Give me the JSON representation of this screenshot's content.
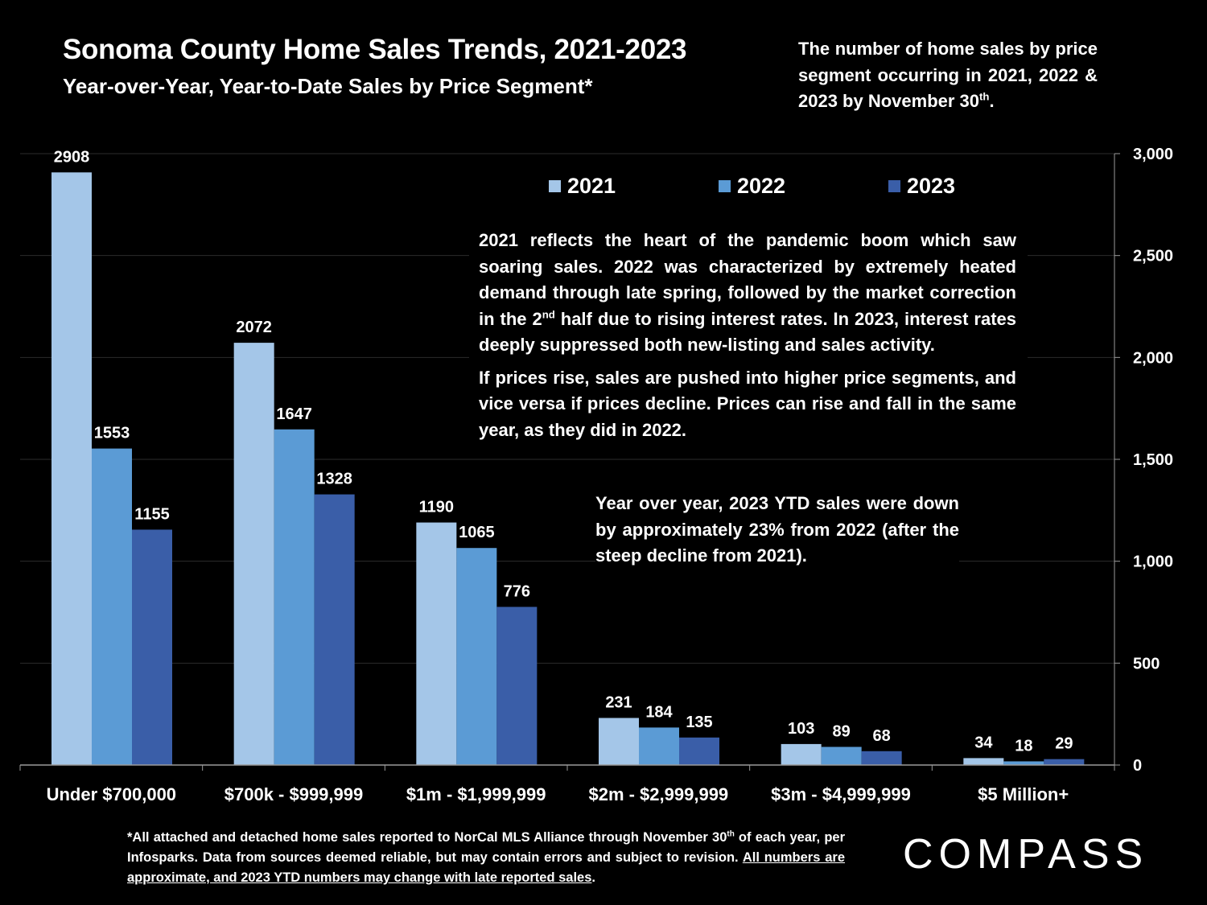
{
  "header": {
    "title": "Sonoma County Home Sales Trends, 2021-2023",
    "subtitle": "Year-over-Year, Year-to-Date Sales by Price Segment*",
    "note_pre": "The number of home sales by price segment occurring in 2021, 2022 & 2023 by November 30",
    "note_sup": "th",
    "note_post": "."
  },
  "annotations": {
    "a1_p1_pre": "2021 reflects the heart of the pandemic boom which saw soaring sales. 2022 was characterized by extremely heated demand through late spring, followed by the market correction in the 2",
    "a1_p1_sup": "nd",
    "a1_p1_post": " half due to rising interest rates. In 2023, interest rates deeply suppressed both new-listing and sales activity.",
    "a1_p2": "If prices rise, sales are pushed into higher price segments, and vice versa if prices decline. Prices can rise and fall in the same year, as they did in 2022.",
    "a2": "Year over year, 2023 YTD sales were down by approximately 23% from 2022 (after the steep decline from 2021)."
  },
  "footnote": {
    "pre": "*All attached and detached home sales reported to NorCal MLS Alliance through November 30",
    "sup": "th",
    "mid": " of each year, per Infosparks. Data from sources deemed reliable, but may contain errors and subject to revision. ",
    "underlined": "All numbers are approximate, and 2023 YTD numbers may change with late reported sales",
    "post": "."
  },
  "logo": {
    "text": "COMPASS"
  },
  "chart_data": {
    "type": "bar",
    "title": "Sonoma County Home Sales Trends, 2021-2023",
    "subtitle": "Year-over-Year, Year-to-Date Sales by Price Segment*",
    "categories": [
      "Under $700,000",
      "$700k - $999,999",
      "$1m - $1,999,999",
      "$2m - $2,999,999",
      "$3m - $4,999,999",
      "$5 Million+"
    ],
    "series": [
      {
        "name": "2021",
        "color": "#a4c6e8",
        "values": [
          2908,
          2072,
          1190,
          231,
          103,
          34
        ]
      },
      {
        "name": "2022",
        "color": "#5b9bd5",
        "values": [
          1553,
          1647,
          1065,
          184,
          89,
          18
        ]
      },
      {
        "name": "2023",
        "color": "#3a5ea8",
        "values": [
          1155,
          1328,
          776,
          135,
          68,
          29
        ]
      }
    ],
    "ylim": [
      0,
      3000
    ],
    "yticks": [
      0,
      500,
      1000,
      1500,
      2000,
      2500,
      3000
    ],
    "ytick_labels": [
      "0",
      "500",
      "1,000",
      "1,500",
      "2,000",
      "2,500",
      "3,000"
    ],
    "yaxis_side": "right",
    "grid": true,
    "legend_position": "top-center",
    "xlabel": "",
    "ylabel": ""
  }
}
